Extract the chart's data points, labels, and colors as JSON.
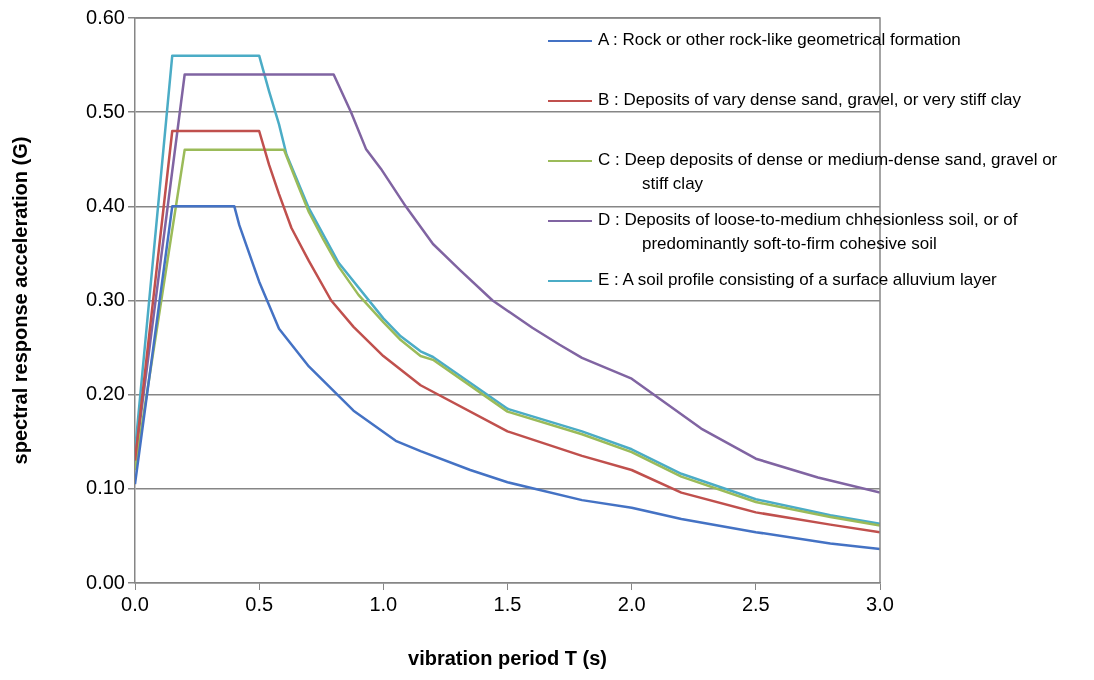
{
  "chart_data": {
    "type": "line",
    "xlabel": "vibration period T (s)",
    "ylabel": "spectral response acceleration (G)",
    "xlim": [
      0,
      3
    ],
    "xticks": [
      {
        "value": 0,
        "label": "0.0"
      },
      {
        "value": 0.5,
        "label": "0.5"
      },
      {
        "value": 1,
        "label": "1.0"
      },
      {
        "value": 1.5,
        "label": "1.5"
      },
      {
        "value": 2,
        "label": "2.0"
      },
      {
        "value": 2.5,
        "label": "2.5"
      },
      {
        "value": 3,
        "label": "3.0"
      }
    ],
    "ylim": [
      0,
      0.6
    ],
    "yticks": [
      {
        "value": 0,
        "label": "0.00"
      },
      {
        "value": 0.1,
        "label": "0.10"
      },
      {
        "value": 0.2,
        "label": "0.20"
      },
      {
        "value": 0.3,
        "label": "0.30"
      },
      {
        "value": 0.4,
        "label": "0.40"
      },
      {
        "value": 0.5,
        "label": "0.50"
      },
      {
        "value": 0.6,
        "label": "0.60"
      }
    ],
    "grid": "y",
    "legend": "top right",
    "marker": "none",
    "line_style": "solid",
    "series": [
      {
        "name": "A : Rock or other rock-like geometrical formation",
        "color": "#4472c4",
        "x": [
          0,
          0.15,
          0.4,
          0.42,
          0.5,
          0.58,
          0.7,
          0.88,
          1.05,
          1.15,
          1.35,
          1.5,
          1.8,
          2.0,
          2.2,
          2.5,
          2.8,
          3.0
        ],
        "values": [
          0.105,
          0.4,
          0.4,
          0.38,
          0.32,
          0.27,
          0.23,
          0.183,
          0.151,
          0.14,
          0.12,
          0.107,
          0.088,
          0.08,
          0.068,
          0.054,
          0.042,
          0.036
        ]
      },
      {
        "name": "B : Deposits of vary dense sand, gravel, or very stiff clay",
        "color": "#c0504d",
        "x": [
          0,
          0.15,
          0.5,
          0.54,
          0.58,
          0.63,
          0.7,
          0.79,
          0.88,
          1.0,
          1.15,
          1.5,
          1.8,
          2.0,
          2.2,
          2.5,
          2.8,
          3.0
        ],
        "values": [
          0.13,
          0.48,
          0.48,
          0.444,
          0.413,
          0.377,
          0.342,
          0.3,
          0.272,
          0.241,
          0.21,
          0.161,
          0.135,
          0.12,
          0.096,
          0.075,
          0.062,
          0.054
        ]
      },
      {
        "name": "C : Deep deposits of dense or medium-dense sand, gravel or stiff clay",
        "color": "#9bbb59",
        "x": [
          0,
          0.2,
          0.6,
          0.66,
          0.7,
          0.76,
          0.82,
          0.9,
          1.0,
          1.07,
          1.15,
          1.2,
          1.5,
          1.8,
          2.0,
          2.2,
          2.5,
          2.8,
          3.0
        ],
        "values": [
          0.12,
          0.46,
          0.46,
          0.42,
          0.394,
          0.364,
          0.336,
          0.306,
          0.277,
          0.258,
          0.241,
          0.237,
          0.182,
          0.158,
          0.139,
          0.113,
          0.086,
          0.07,
          0.061
        ]
      },
      {
        "name": "D : Deposits of loose-to-medium chhesionless soil, or of predominantly soft-to-firm cohesive soil",
        "color": "#8064a2",
        "x": [
          0,
          0.2,
          0.8,
          0.87,
          0.93,
          0.99,
          1.09,
          1.2,
          1.31,
          1.44,
          1.6,
          1.71,
          1.8,
          2.0,
          2.09,
          2.28,
          2.5,
          2.75,
          3.0
        ],
        "values": [
          0.13,
          0.54,
          0.54,
          0.5,
          0.461,
          0.44,
          0.4,
          0.36,
          0.332,
          0.3,
          0.271,
          0.253,
          0.239,
          0.217,
          0.2,
          0.164,
          0.132,
          0.112,
          0.096
        ]
      },
      {
        "name": "E : A soil profile consisting of a surface alluvium layer",
        "color": "#4bacc6",
        "x": [
          0,
          0.15,
          0.5,
          0.54,
          0.58,
          0.61,
          0.7,
          0.82,
          1.0,
          1.07,
          1.15,
          1.2,
          1.5,
          1.8,
          2.0,
          2.2,
          2.5,
          2.8,
          3.0
        ],
        "values": [
          0.14,
          0.56,
          0.56,
          0.522,
          0.487,
          0.455,
          0.398,
          0.34,
          0.281,
          0.262,
          0.246,
          0.24,
          0.185,
          0.161,
          0.142,
          0.116,
          0.089,
          0.072,
          0.063
        ]
      }
    ]
  }
}
